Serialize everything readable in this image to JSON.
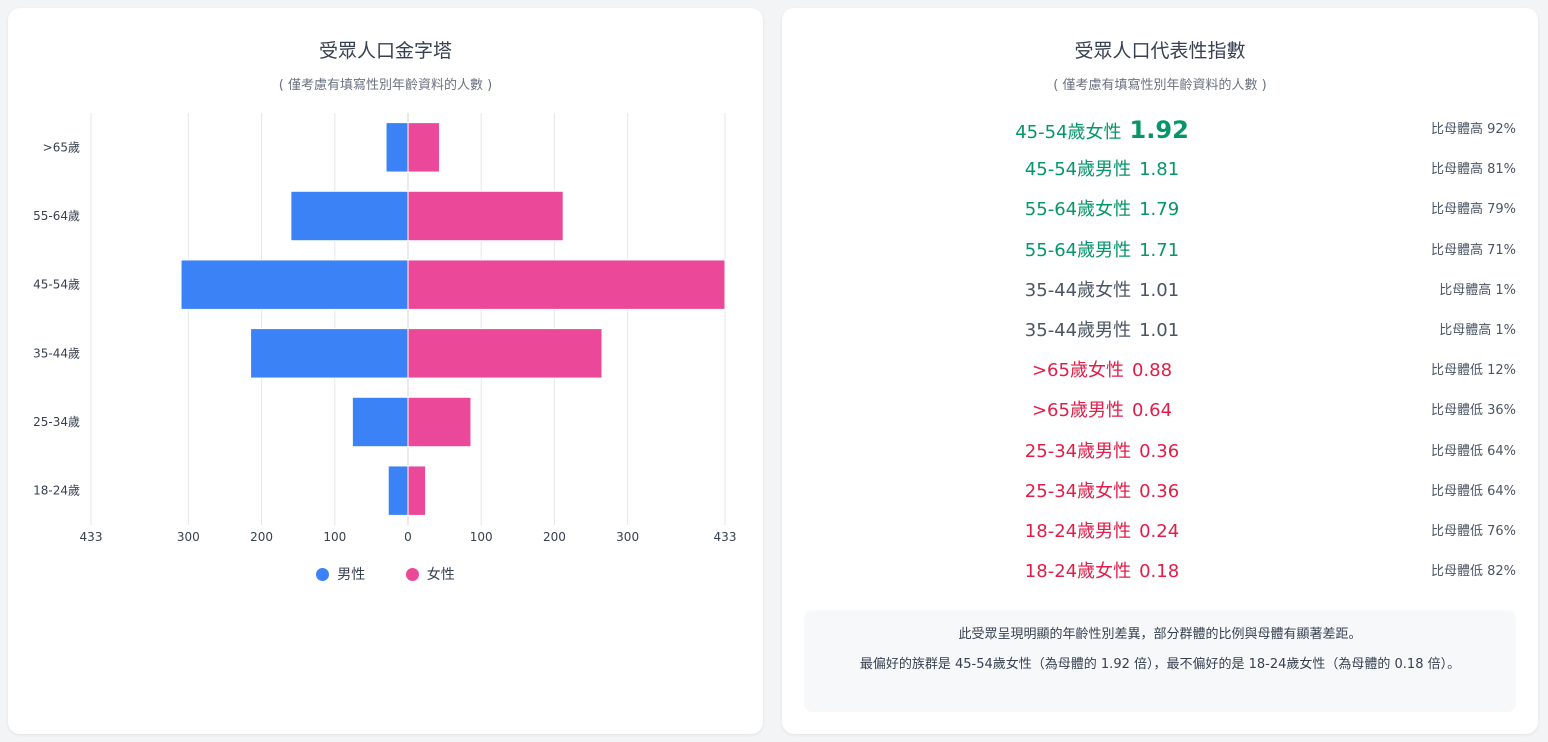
{
  "pyramid": {
    "title": "受眾人口金字塔",
    "subtitle": "( 僅考慮有填寫性別年齡資料的人數 )",
    "legend": {
      "male": "男性",
      "female": "女性"
    },
    "colors": {
      "male": "#3b82f6",
      "female": "#ec4899"
    },
    "x_tick_labels": [
      "433",
      "300",
      "200",
      "100",
      "0",
      "100",
      "200",
      "300",
      "433"
    ]
  },
  "chart_data": {
    "type": "bar",
    "orientation": "horizontal-population-pyramid",
    "categories": [
      ">65歲",
      "55-64歲",
      "45-54歲",
      "35-44歲",
      "25-34歲",
      "18-24歲"
    ],
    "series": [
      {
        "name": "男性",
        "values": [
          30,
          160,
          310,
          215,
          76,
          27
        ]
      },
      {
        "name": "女性",
        "values": [
          43,
          212,
          433,
          265,
          86,
          24
        ]
      }
    ],
    "xlim": [
      -433,
      433
    ],
    "grid": true,
    "legend": "bottom"
  },
  "representativeness": {
    "title": "受眾人口代表性指數",
    "subtitle": "( 僅考慮有填寫性別年齡資料的人數 )",
    "colors": {
      "high": "#059669",
      "neutral": "#4b5563",
      "low": "#e11d48"
    },
    "items": [
      {
        "label": "45-54歲女性",
        "value": "1.92",
        "diff": "比母體高 92%",
        "level": "high"
      },
      {
        "label": "45-54歲男性",
        "value": "1.81",
        "diff": "比母體高 81%",
        "level": "high"
      },
      {
        "label": "55-64歲女性",
        "value": "1.79",
        "diff": "比母體高 79%",
        "level": "high"
      },
      {
        "label": "55-64歲男性",
        "value": "1.71",
        "diff": "比母體高 71%",
        "level": "high"
      },
      {
        "label": "35-44歲女性",
        "value": "1.01",
        "diff": "比母體高 1%",
        "level": "neutral"
      },
      {
        "label": "35-44歲男性",
        "value": "1.01",
        "diff": "比母體高 1%",
        "level": "neutral"
      },
      {
        "label": ">65歲女性",
        "value": "0.88",
        "diff": "比母體低 12%",
        "level": "low"
      },
      {
        "label": ">65歲男性",
        "value": "0.64",
        "diff": "比母體低 36%",
        "level": "low"
      },
      {
        "label": "25-34歲男性",
        "value": "0.36",
        "diff": "比母體低 64%",
        "level": "low"
      },
      {
        "label": "25-34歲女性",
        "value": "0.36",
        "diff": "比母體低 64%",
        "level": "low"
      },
      {
        "label": "18-24歲男性",
        "value": "0.24",
        "diff": "比母體低 76%",
        "level": "low"
      },
      {
        "label": "18-24歲女性",
        "value": "0.18",
        "diff": "比母體低 82%",
        "level": "low"
      }
    ],
    "summary_line1": "此受眾呈現明顯的年齡性別差異，部分群體的比例與母體有顯著差距。",
    "summary_line2": "最偏好的族群是 45-54歲女性（為母體的 1.92 倍），最不偏好的是 18-24歲女性（為母體的 0.18 倍）。"
  }
}
